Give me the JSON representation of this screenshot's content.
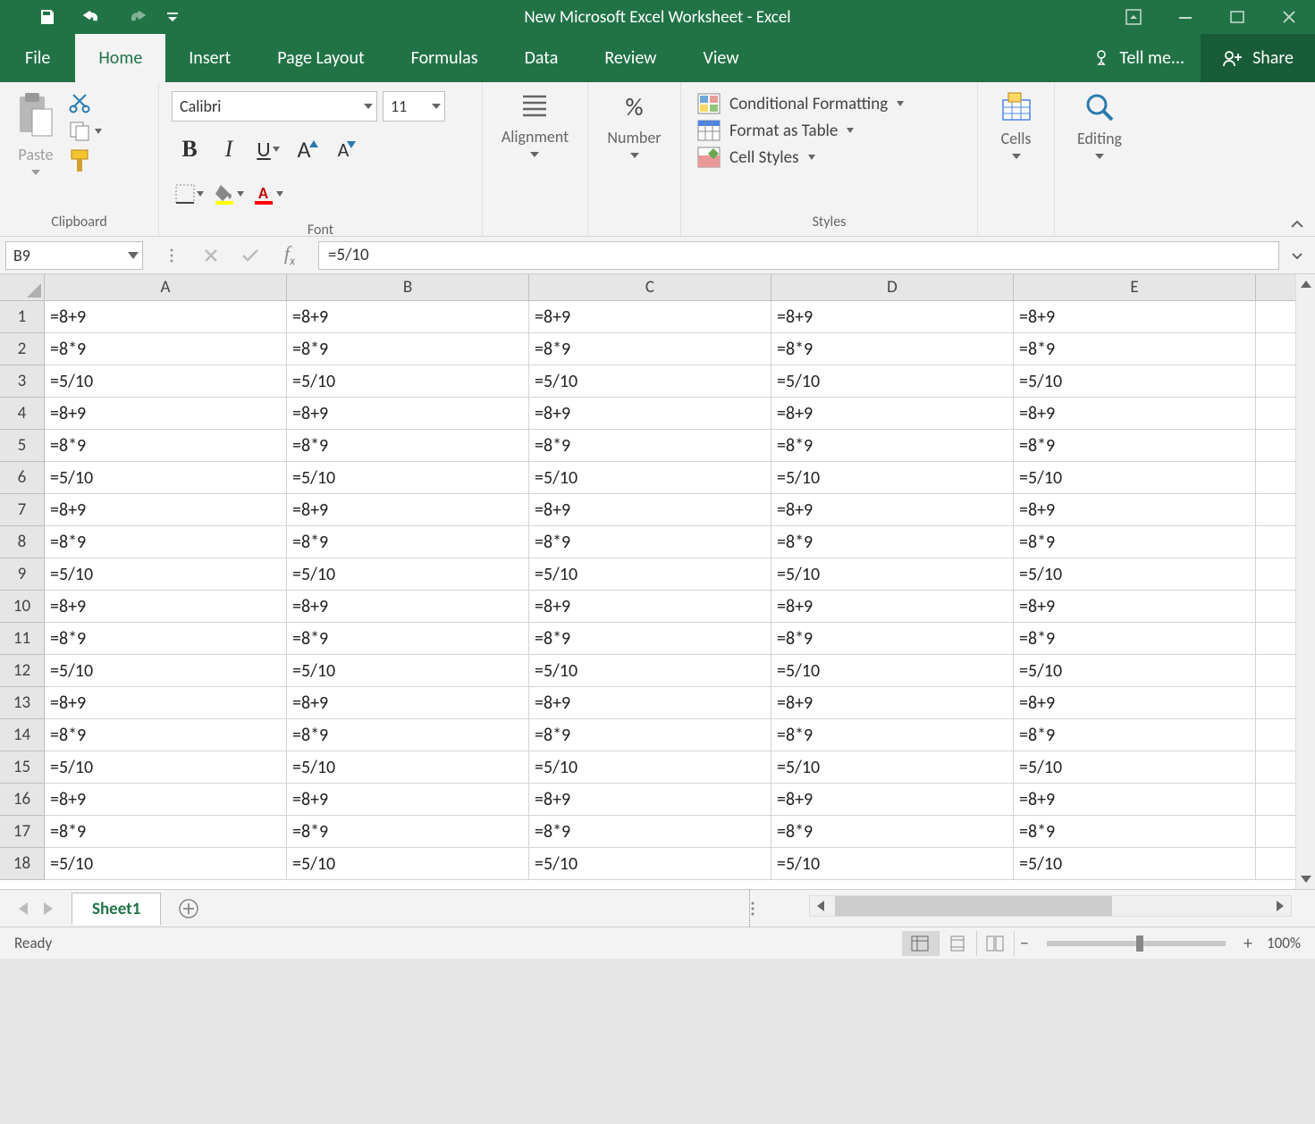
{
  "title": "New Microsoft Excel Worksheet - Excel",
  "tabs": [
    "File",
    "Home",
    "Insert",
    "Page Layout",
    "Formulas",
    "Data",
    "Review",
    "View"
  ],
  "active_tab": "Home",
  "tellme": "Tell me...",
  "share": "Share",
  "ribbon": {
    "clipboard": {
      "label": "Clipboard",
      "paste": "Paste"
    },
    "font": {
      "label": "Font",
      "name": "Calibri",
      "size": "11"
    },
    "alignment": {
      "label": "Alignment"
    },
    "number": {
      "label": "Number"
    },
    "styles": {
      "label": "Styles",
      "cond": "Conditional Formatting",
      "table": "Format as Table",
      "cell": "Cell Styles"
    },
    "cells": {
      "label": "Cells"
    },
    "editing": {
      "label": "Editing"
    }
  },
  "formula_bar": {
    "name_box": "B9",
    "formula": "=5/10"
  },
  "grid": {
    "columns": [
      "A",
      "B",
      "C",
      "D",
      "E"
    ],
    "row_count": 18,
    "pattern": [
      "=8+9",
      "=8*9",
      "=5/10"
    ]
  },
  "sheet": {
    "active": "Sheet1"
  },
  "status": {
    "ready": "Ready",
    "zoom": "100%"
  },
  "colors": {
    "brand": "#217346",
    "brand_dark": "#185c37",
    "ribbon_bg": "#f3f3f3",
    "grid_border": "#d4d4d4",
    "header_bg": "#e6e6e6"
  }
}
